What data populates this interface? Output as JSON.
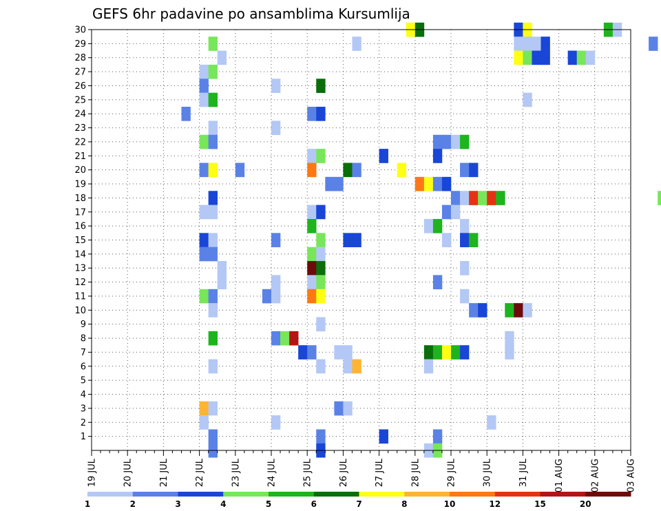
{
  "chart_data": {
    "type": "heatmap",
    "title": "GEFS 6hr padavine po ansamblima Kursumlija",
    "x_ticks": [
      "19 JUL",
      "20 JUL",
      "21 JUL",
      "22 JUL",
      "23 JUL",
      "24 JUL",
      "25 JUL",
      "26 JUL",
      "27 JUL",
      "28 JUL",
      "29 JUL",
      "30 JUL",
      "31 JUL",
      "01 AUG",
      "02 AUG",
      "03 AUG"
    ],
    "y_ticks": [
      "1",
      "2",
      "3",
      "4",
      "5",
      "6",
      "7",
      "8",
      "9",
      "10",
      "11",
      "12",
      "13",
      "14",
      "15",
      "16",
      "17",
      "18",
      "19",
      "20",
      "21",
      "22",
      "23",
      "24",
      "25",
      "26",
      "27",
      "28",
      "29",
      "30"
    ],
    "x_range": [
      "19 JUL 00Z",
      "03 AUG 00Z"
    ],
    "y_range": [
      0,
      30
    ],
    "grid": true,
    "legend": {
      "position": "bottom",
      "labels": [
        "1",
        "2",
        "3",
        "4",
        "5",
        "6",
        "7",
        "8",
        "10",
        "12",
        "15",
        "20"
      ],
      "colors": [
        "#b4c8f5",
        "#5a82e6",
        "#1946d7",
        "#78e65a",
        "#1eb41e",
        "#0a6e0a",
        "#ffff14",
        "#ffb432",
        "#ff7814",
        "#e63214",
        "#b41414",
        "#6e0a0a"
      ]
    },
    "cells": [
      {
        "member": 30,
        "step": 35,
        "cls": 7
      },
      {
        "member": 30,
        "step": 36,
        "cls": 6
      },
      {
        "member": 30,
        "step": 47,
        "cls": 3
      },
      {
        "member": 30,
        "step": 48,
        "cls": 7
      },
      {
        "member": 30,
        "step": 57,
        "cls": 5
      },
      {
        "member": 30,
        "step": 58,
        "cls": 1
      },
      {
        "member": 30,
        "step": 72,
        "cls": 1
      },
      {
        "member": 30,
        "step": 91,
        "cls": 1
      },
      {
        "member": 30,
        "step": 94,
        "cls": 3
      },
      {
        "member": 29,
        "step": 13,
        "cls": 4
      },
      {
        "member": 29,
        "step": 29,
        "cls": 1
      },
      {
        "member": 29,
        "step": 47,
        "cls": 1
      },
      {
        "member": 29,
        "step": 48,
        "cls": 1
      },
      {
        "member": 29,
        "step": 49,
        "cls": 1
      },
      {
        "member": 29,
        "step": 50,
        "cls": 3
      },
      {
        "member": 29,
        "step": 62,
        "cls": 2
      },
      {
        "member": 28,
        "step": 14,
        "cls": 1
      },
      {
        "member": 28,
        "step": 47,
        "cls": 7
      },
      {
        "member": 28,
        "step": 48,
        "cls": 4
      },
      {
        "member": 28,
        "step": 49,
        "cls": 3
      },
      {
        "member": 28,
        "step": 50,
        "cls": 3
      },
      {
        "member": 28,
        "step": 53,
        "cls": 3
      },
      {
        "member": 28,
        "step": 54,
        "cls": 4
      },
      {
        "member": 28,
        "step": 55,
        "cls": 1
      },
      {
        "member": 27,
        "step": 12,
        "cls": 1
      },
      {
        "member": 27,
        "step": 13,
        "cls": 4
      },
      {
        "member": 26,
        "step": 12,
        "cls": 2
      },
      {
        "member": 26,
        "step": 20,
        "cls": 1
      },
      {
        "member": 26,
        "step": 25,
        "cls": 6
      },
      {
        "member": 26,
        "step": 74,
        "cls": 9
      },
      {
        "member": 26,
        "step": 75,
        "cls": 3
      },
      {
        "member": 26,
        "step": 76,
        "cls": 3
      },
      {
        "member": 26,
        "step": 77,
        "cls": 3
      },
      {
        "member": 25,
        "step": 12,
        "cls": 1
      },
      {
        "member": 25,
        "step": 13,
        "cls": 5
      },
      {
        "member": 25,
        "step": 48,
        "cls": 1
      },
      {
        "member": 25,
        "step": 82,
        "cls": 3
      },
      {
        "member": 25,
        "step": 83,
        "cls": 5
      },
      {
        "member": 25,
        "step": 93,
        "cls": 1
      },
      {
        "member": 25,
        "step": 94,
        "cls": 3
      },
      {
        "member": 24,
        "step": 10,
        "cls": 2
      },
      {
        "member": 24,
        "step": 24,
        "cls": 2
      },
      {
        "member": 24,
        "step": 25,
        "cls": 3
      },
      {
        "member": 24,
        "step": 79,
        "cls": 4
      },
      {
        "member": 24,
        "step": 80,
        "cls": 1
      },
      {
        "member": 23,
        "step": 13,
        "cls": 1
      },
      {
        "member": 23,
        "step": 20,
        "cls": 1
      },
      {
        "member": 22,
        "step": 12,
        "cls": 4
      },
      {
        "member": 22,
        "step": 13,
        "cls": 2
      },
      {
        "member": 22,
        "step": 38,
        "cls": 2
      },
      {
        "member": 22,
        "step": 39,
        "cls": 2
      },
      {
        "member": 22,
        "step": 40,
        "cls": 1
      },
      {
        "member": 22,
        "step": 41,
        "cls": 5
      },
      {
        "member": 22,
        "step": 74,
        "cls": 1
      },
      {
        "member": 22,
        "step": 78,
        "cls": 7
      },
      {
        "member": 22,
        "step": 79,
        "cls": 3
      },
      {
        "member": 21,
        "step": 24,
        "cls": 1
      },
      {
        "member": 21,
        "step": 25,
        "cls": 4
      },
      {
        "member": 21,
        "step": 32,
        "cls": 3
      },
      {
        "member": 21,
        "step": 38,
        "cls": 3
      },
      {
        "member": 20,
        "step": 12,
        "cls": 2
      },
      {
        "member": 20,
        "step": 13,
        "cls": 7
      },
      {
        "member": 20,
        "step": 16,
        "cls": 2
      },
      {
        "member": 20,
        "step": 24,
        "cls": 9
      },
      {
        "member": 20,
        "step": 28,
        "cls": 6
      },
      {
        "member": 20,
        "step": 29,
        "cls": 2
      },
      {
        "member": 20,
        "step": 34,
        "cls": 7
      },
      {
        "member": 20,
        "step": 41,
        "cls": 2
      },
      {
        "member": 20,
        "step": 42,
        "cls": 3
      },
      {
        "member": 19,
        "step": 26,
        "cls": 2
      },
      {
        "member": 19,
        "step": 27,
        "cls": 2
      },
      {
        "member": 19,
        "step": 36,
        "cls": 9
      },
      {
        "member": 19,
        "step": 37,
        "cls": 7
      },
      {
        "member": 19,
        "step": 38,
        "cls": 2
      },
      {
        "member": 19,
        "step": 39,
        "cls": 3
      },
      {
        "member": 18,
        "step": 13,
        "cls": 3
      },
      {
        "member": 18,
        "step": 40,
        "cls": 2
      },
      {
        "member": 18,
        "step": 41,
        "cls": 1
      },
      {
        "member": 18,
        "step": 42,
        "cls": 10
      },
      {
        "member": 18,
        "step": 43,
        "cls": 4
      },
      {
        "member": 18,
        "step": 44,
        "cls": 10
      },
      {
        "member": 18,
        "step": 45,
        "cls": 5
      },
      {
        "member": 18,
        "step": 63,
        "cls": 4
      },
      {
        "member": 17,
        "step": 12,
        "cls": 1
      },
      {
        "member": 17,
        "step": 13,
        "cls": 1
      },
      {
        "member": 17,
        "step": 24,
        "cls": 1
      },
      {
        "member": 17,
        "step": 25,
        "cls": 3
      },
      {
        "member": 17,
        "step": 39,
        "cls": 2
      },
      {
        "member": 17,
        "step": 40,
        "cls": 1
      },
      {
        "member": 17,
        "step": 68,
        "cls": 1
      },
      {
        "member": 16,
        "step": 24,
        "cls": 5
      },
      {
        "member": 16,
        "step": 37,
        "cls": 1
      },
      {
        "member": 16,
        "step": 38,
        "cls": 5
      },
      {
        "member": 16,
        "step": 41,
        "cls": 1
      },
      {
        "member": 16,
        "step": 70,
        "cls": 1
      },
      {
        "member": 15,
        "step": 12,
        "cls": 3
      },
      {
        "member": 15,
        "step": 13,
        "cls": 1
      },
      {
        "member": 15,
        "step": 20,
        "cls": 2
      },
      {
        "member": 15,
        "step": 25,
        "cls": 4
      },
      {
        "member": 15,
        "step": 28,
        "cls": 3
      },
      {
        "member": 15,
        "step": 29,
        "cls": 3
      },
      {
        "member": 15,
        "step": 39,
        "cls": 1
      },
      {
        "member": 15,
        "step": 41,
        "cls": 3
      },
      {
        "member": 15,
        "step": 42,
        "cls": 5
      },
      {
        "member": 14,
        "step": 12,
        "cls": 2
      },
      {
        "member": 14,
        "step": 13,
        "cls": 2
      },
      {
        "member": 14,
        "step": 24,
        "cls": 4
      },
      {
        "member": 14,
        "step": 25,
        "cls": 1
      },
      {
        "member": 13,
        "step": 14,
        "cls": 1
      },
      {
        "member": 13,
        "step": 24,
        "cls": 12
      },
      {
        "member": 13,
        "step": 25,
        "cls": 6
      },
      {
        "member": 13,
        "step": 41,
        "cls": 1
      },
      {
        "member": 12,
        "step": 14,
        "cls": 1
      },
      {
        "member": 12,
        "step": 20,
        "cls": 1
      },
      {
        "member": 12,
        "step": 24,
        "cls": 1
      },
      {
        "member": 12,
        "step": 25,
        "cls": 4
      },
      {
        "member": 12,
        "step": 38,
        "cls": 2
      },
      {
        "member": 12,
        "step": 73,
        "cls": 3
      },
      {
        "member": 12,
        "step": 74,
        "cls": 6
      },
      {
        "member": 12,
        "step": 75,
        "cls": 1
      },
      {
        "member": 12,
        "step": 76,
        "cls": 2
      },
      {
        "member": 12,
        "step": 77,
        "cls": 4
      },
      {
        "member": 12,
        "step": 78,
        "cls": 2
      },
      {
        "member": 12,
        "step": 81,
        "cls": 2
      },
      {
        "member": 12,
        "step": 85,
        "cls": 1
      },
      {
        "member": 12,
        "step": 86,
        "cls": 1
      },
      {
        "member": 11,
        "step": 12,
        "cls": 4
      },
      {
        "member": 11,
        "step": 13,
        "cls": 2
      },
      {
        "member": 11,
        "step": 19,
        "cls": 2
      },
      {
        "member": 11,
        "step": 20,
        "cls": 1
      },
      {
        "member": 11,
        "step": 24,
        "cls": 9
      },
      {
        "member": 11,
        "step": 25,
        "cls": 7
      },
      {
        "member": 11,
        "step": 41,
        "cls": 1
      },
      {
        "member": 11,
        "step": 94,
        "cls": 3
      },
      {
        "member": 10,
        "step": 13,
        "cls": 1
      },
      {
        "member": 10,
        "step": 42,
        "cls": 2
      },
      {
        "member": 10,
        "step": 43,
        "cls": 3
      },
      {
        "member": 10,
        "step": 46,
        "cls": 5
      },
      {
        "member": 10,
        "step": 47,
        "cls": 12
      },
      {
        "member": 10,
        "step": 48,
        "cls": 1
      },
      {
        "member": 9,
        "step": 25,
        "cls": 1
      },
      {
        "member": 9,
        "step": 74,
        "cls": 1
      },
      {
        "member": 8,
        "step": 13,
        "cls": 5
      },
      {
        "member": 8,
        "step": 20,
        "cls": 2
      },
      {
        "member": 8,
        "step": 21,
        "cls": 4
      },
      {
        "member": 8,
        "step": 22,
        "cls": 11
      },
      {
        "member": 8,
        "step": 46,
        "cls": 1
      },
      {
        "member": 8,
        "step": 75,
        "cls": 2
      },
      {
        "member": 8,
        "step": 76,
        "cls": 1
      },
      {
        "member": 8,
        "step": 77,
        "cls": 5
      },
      {
        "member": 8,
        "step": 78,
        "cls": 1
      },
      {
        "member": 7,
        "step": 23,
        "cls": 3
      },
      {
        "member": 7,
        "step": 24,
        "cls": 2
      },
      {
        "member": 7,
        "step": 27,
        "cls": 1
      },
      {
        "member": 7,
        "step": 28,
        "cls": 1
      },
      {
        "member": 7,
        "step": 37,
        "cls": 6
      },
      {
        "member": 7,
        "step": 38,
        "cls": 5
      },
      {
        "member": 7,
        "step": 39,
        "cls": 7
      },
      {
        "member": 7,
        "step": 40,
        "cls": 5
      },
      {
        "member": 7,
        "step": 41,
        "cls": 3
      },
      {
        "member": 7,
        "step": 46,
        "cls": 1
      },
      {
        "member": 7,
        "step": 79,
        "cls": 2
      },
      {
        "member": 7,
        "step": 84,
        "cls": 2
      },
      {
        "member": 6,
        "step": 13,
        "cls": 1
      },
      {
        "member": 6,
        "step": 25,
        "cls": 1
      },
      {
        "member": 6,
        "step": 28,
        "cls": 1
      },
      {
        "member": 6,
        "step": 29,
        "cls": 8
      },
      {
        "member": 6,
        "step": 37,
        "cls": 1
      },
      {
        "member": 6,
        "step": 80,
        "cls": 1
      },
      {
        "member": 6,
        "step": 81,
        "cls": 2
      },
      {
        "member": 3,
        "step": 12,
        "cls": 8
      },
      {
        "member": 3,
        "step": 13,
        "cls": 1
      },
      {
        "member": 3,
        "step": 27,
        "cls": 2
      },
      {
        "member": 3,
        "step": 28,
        "cls": 1
      },
      {
        "member": 3,
        "step": 94,
        "cls": 3
      },
      {
        "member": 2,
        "step": 12,
        "cls": 1
      },
      {
        "member": 2,
        "step": 20,
        "cls": 1
      },
      {
        "member": 2,
        "step": 44,
        "cls": 1
      },
      {
        "member": 2,
        "step": 78,
        "cls": 7
      },
      {
        "member": 2,
        "step": 79,
        "cls": 6
      },
      {
        "member": 1,
        "step": 13,
        "cls": 2
      },
      {
        "member": 1,
        "step": 25,
        "cls": 2
      },
      {
        "member": 1,
        "step": 32,
        "cls": 3
      },
      {
        "member": 1,
        "step": 38,
        "cls": 2
      },
      {
        "member": 0,
        "step": 13,
        "cls": 2
      },
      {
        "member": 0,
        "step": 25,
        "cls": 3
      },
      {
        "member": 0,
        "step": 37,
        "cls": 1
      },
      {
        "member": 0,
        "step": 38,
        "cls": 4
      },
      {
        "member": 0,
        "step": 68,
        "cls": 1
      },
      {
        "member": 0,
        "step": 69,
        "cls": 12
      },
      {
        "member": 0,
        "step": 70,
        "cls": 4
      }
    ]
  }
}
